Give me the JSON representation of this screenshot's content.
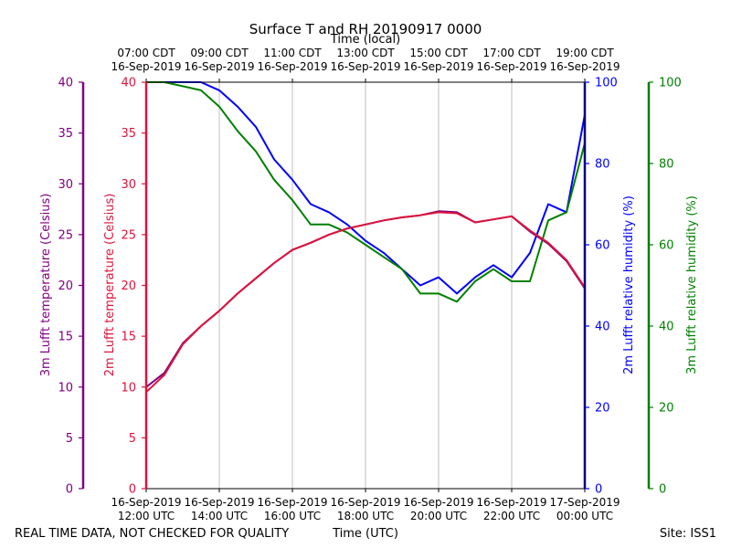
{
  "chart_data": {
    "type": "line",
    "title": "Surface T and RH 20190917 0000",
    "top_axis_label": "Time (local)",
    "xlabel": "Time (UTC)",
    "footer_left": "REAL TIME DATA, NOT CHECKED FOR QUALITY",
    "footer_right": "Site: ISS1",
    "x_range_hours_utc": [
      12,
      24
    ],
    "x_ticks": [
      {
        "hour": 12,
        "date": "16-Sep-2019",
        "utc": "12:00 UTC",
        "local_time": "07:00 CDT",
        "local_date": "16-Sep-2019"
      },
      {
        "hour": 14,
        "date": "16-Sep-2019",
        "utc": "14:00 UTC",
        "local_time": "09:00 CDT",
        "local_date": "16-Sep-2019"
      },
      {
        "hour": 16,
        "date": "16-Sep-2019",
        "utc": "16:00 UTC",
        "local_time": "11:00 CDT",
        "local_date": "16-Sep-2019"
      },
      {
        "hour": 18,
        "date": "16-Sep-2019",
        "utc": "18:00 UTC",
        "local_time": "13:00 CDT",
        "local_date": "16-Sep-2019"
      },
      {
        "hour": 20,
        "date": "16-Sep-2019",
        "utc": "20:00 UTC",
        "local_time": "15:00 CDT",
        "local_date": "16-Sep-2019"
      },
      {
        "hour": 22,
        "date": "16-Sep-2019",
        "utc": "22:00 UTC",
        "local_time": "17:00 CDT",
        "local_date": "16-Sep-2019"
      },
      {
        "hour": 24,
        "date": "17-Sep-2019",
        "utc": "00:00 UTC",
        "local_time": "19:00 CDT",
        "local_date": "16-Sep-2019"
      }
    ],
    "axes": {
      "temp_3m": {
        "label": "3m Lufft temperature (Celsius)",
        "ylim": [
          0,
          40
        ],
        "ticks": [
          "0",
          "5",
          "10",
          "15",
          "20",
          "25",
          "30",
          "35",
          "40"
        ],
        "color": "#800080"
      },
      "temp_2m": {
        "label": "2m Lufft temperature (Celsius)",
        "ylim": [
          0,
          40
        ],
        "ticks": [
          "0",
          "5",
          "10",
          "15",
          "20",
          "25",
          "30",
          "35",
          "40"
        ],
        "color": "#dc143c"
      },
      "rh_2m": {
        "label": "2m Lufft relative humidity (%)",
        "ylim": [
          0,
          100
        ],
        "ticks": [
          "0",
          "20",
          "40",
          "60",
          "80",
          "100"
        ],
        "color": "#0000ff"
      },
      "rh_3m": {
        "label": "3m Lufft relative humidity (%)",
        "ylim": [
          0,
          100
        ],
        "ticks": [
          "0",
          "20",
          "40",
          "60",
          "80",
          "100"
        ],
        "color": "#008000"
      }
    },
    "series": [
      {
        "name": "2m Lufft temperature",
        "axis": "temp_2m",
        "color": "#dc143c",
        "x": [
          12.0,
          12.5,
          13.0,
          13.5,
          14.0,
          14.5,
          15.0,
          15.5,
          16.0,
          16.5,
          17.0,
          17.5,
          18.0,
          18.5,
          19.0,
          19.5,
          20.0,
          20.5,
          21.0,
          21.5,
          22.0,
          22.5,
          23.0,
          23.5,
          24.0
        ],
        "values": [
          9.5,
          11.2,
          14.2,
          16.0,
          17.5,
          19.2,
          20.7,
          22.2,
          23.5,
          24.2,
          25.0,
          25.6,
          26.0,
          26.4,
          26.7,
          26.9,
          27.2,
          27.1,
          26.2,
          26.5,
          26.8,
          25.4,
          24.2,
          22.5,
          19.8
        ]
      },
      {
        "name": "3m Lufft temperature",
        "axis": "temp_3m",
        "color": "#800080",
        "x": [
          12.0,
          12.5,
          13.0,
          13.5,
          14.0,
          14.5,
          15.0,
          15.5,
          16.0,
          16.5,
          17.0,
          17.5,
          18.0,
          18.5,
          19.0,
          19.5,
          20.0,
          20.5,
          21.0,
          21.5,
          22.0,
          22.5,
          23.0,
          23.5,
          24.0
        ],
        "values": [
          10.0,
          11.4,
          14.3,
          16.0,
          17.5,
          19.2,
          20.7,
          22.2,
          23.5,
          24.2,
          25.0,
          25.6,
          26.0,
          26.4,
          26.7,
          26.9,
          27.3,
          27.2,
          26.2,
          26.5,
          26.8,
          25.3,
          24.1,
          22.4,
          19.7
        ]
      },
      {
        "name": "2m Lufft relative humidity",
        "axis": "rh_2m",
        "color": "#0000ff",
        "x": [
          12.0,
          12.5,
          13.0,
          13.5,
          14.0,
          14.5,
          15.0,
          15.5,
          16.0,
          16.5,
          17.0,
          17.5,
          18.0,
          18.5,
          19.0,
          19.5,
          20.0,
          20.5,
          21.0,
          21.5,
          22.0,
          22.5,
          23.0,
          23.5,
          24.0
        ],
        "values": [
          100,
          100,
          100,
          100,
          98,
          94,
          89,
          81,
          76,
          70,
          68,
          65,
          61,
          58,
          54,
          50,
          52,
          48,
          52,
          55,
          52,
          58,
          70,
          68,
          92
        ]
      },
      {
        "name": "3m Lufft relative humidity",
        "axis": "rh_3m",
        "color": "#008000",
        "x": [
          12.0,
          12.5,
          13.0,
          13.5,
          14.0,
          14.5,
          15.0,
          15.5,
          16.0,
          16.5,
          17.0,
          17.5,
          18.0,
          18.5,
          19.0,
          19.5,
          20.0,
          20.5,
          21.0,
          21.5,
          22.0,
          22.5,
          23.0,
          23.5,
          24.0
        ],
        "values": [
          100,
          100,
          99,
          98,
          94,
          88,
          83,
          76,
          71,
          65,
          65,
          63,
          60,
          57,
          54,
          48,
          48,
          46,
          51,
          54,
          51,
          51,
          66,
          68,
          85
        ]
      }
    ]
  }
}
